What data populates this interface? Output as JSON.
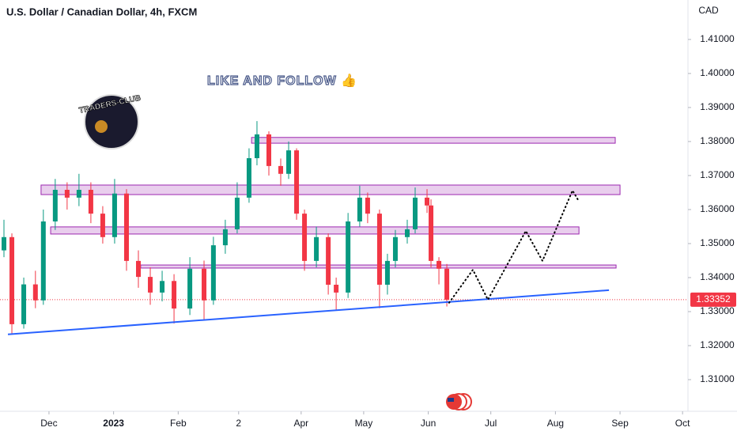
{
  "chart_data": {
    "type": "candlestick",
    "title": "U.S. Dollar / Canadian Dollar, 4h, FXCM",
    "currency": "CAD",
    "banner": "LIKE AND FOLLOW 👍",
    "logo": "TRADERS-CLUB",
    "up_color": "#089981",
    "down_color": "#f23645",
    "candles": {
      "x": [
        8.4,
        12.2,
        17.9,
        23.5,
        27.3,
        33,
        38.7,
        44.4,
        50.1,
        55.8,
        61.5,
        67.2,
        72.9,
        78.6,
        84.3,
        90,
        97.6,
        104.4,
        108.9,
        114.6,
        120.3,
        126,
        129.8,
        135.5,
        141.2,
        145,
        148.8,
        152.6,
        158.3,
        164,
        167.8,
        173.5,
        179.1,
        182.9,
        188.6,
        192.4,
        196.2,
        201.9,
        205.7,
        211.4,
        213.3,
        217.1,
        220.9
      ],
      "open": [
        1.348,
        1.3519,
        1.3263,
        1.338,
        1.3333,
        1.3565,
        1.3658,
        1.3635,
        1.3658,
        1.3588,
        1.3519,
        1.3647,
        1.3449,
        1.3402,
        1.3356,
        1.339,
        1.3309,
        1.3426,
        1.3333,
        1.3495,
        1.3542,
        1.3635,
        1.3751,
        1.3821,
        1.3728,
        1.3705,
        1.3774,
        1.3588,
        1.3449,
        1.3519,
        1.3379,
        1.3356,
        1.3565,
        1.3635,
        1.3588,
        1.3379,
        1.3449,
        1.3519,
        1.3542,
        1.3635,
        1.3612,
        1.3449,
        1.3426
      ],
      "high": [
        1.357,
        1.353,
        1.34,
        1.342,
        1.36,
        1.369,
        1.368,
        1.3705,
        1.368,
        1.361,
        1.369,
        1.366,
        1.348,
        1.343,
        1.342,
        1.341,
        1.346,
        1.345,
        1.352,
        1.357,
        1.368,
        1.378,
        1.386,
        1.383,
        1.375,
        1.38,
        1.378,
        1.36,
        1.355,
        1.353,
        1.34,
        1.359,
        1.367,
        1.365,
        1.36,
        1.347,
        1.354,
        1.357,
        1.3665,
        1.366,
        1.363,
        1.346,
        1.344
      ],
      "low": [
        1.346,
        1.3235,
        1.325,
        1.331,
        1.332,
        1.354,
        1.36,
        1.361,
        1.356,
        1.35,
        1.35,
        1.342,
        1.337,
        1.332,
        1.333,
        1.3265,
        1.329,
        1.3275,
        1.332,
        1.347,
        1.353,
        1.362,
        1.373,
        1.37,
        1.367,
        1.369,
        1.357,
        1.342,
        1.343,
        1.335,
        1.3305,
        1.334,
        1.355,
        1.356,
        1.331,
        1.335,
        1.343,
        1.35,
        1.353,
        1.359,
        1.343,
        1.338,
        1.3315
      ],
      "close": [
        1.3519,
        1.3263,
        1.338,
        1.3333,
        1.3565,
        1.3658,
        1.3635,
        1.3658,
        1.3588,
        1.3519,
        1.3647,
        1.3449,
        1.3402,
        1.3356,
        1.339,
        1.3309,
        1.3426,
        1.3333,
        1.3495,
        1.3542,
        1.3635,
        1.3751,
        1.3821,
        1.3728,
        1.3705,
        1.3774,
        1.3588,
        1.3449,
        1.3519,
        1.3379,
        1.3356,
        1.3565,
        1.3635,
        1.3588,
        1.3379,
        1.3449,
        1.3519,
        1.3542,
        1.3635,
        1.3612,
        1.3449,
        1.3426,
        1.3335
      ]
    },
    "zones": [
      {
        "x": [
          127.2,
          301.7
        ],
        "y": [
          1.3795,
          1.3812
        ]
      },
      {
        "x": [
          26.2,
          304
        ],
        "y": [
          1.3644,
          1.3672
        ]
      },
      {
        "x": [
          30.8,
          284.3
        ],
        "y": [
          1.3528,
          1.3549
        ]
      },
      {
        "x": [
          74,
          302.1
        ],
        "y": [
          1.3428,
          1.3437
        ]
      }
    ],
    "trendline": {
      "x": [
        10.3,
        298.7
      ],
      "y": [
        1.3233,
        1.3363
      ]
    },
    "projection": {
      "x": [
        222,
        233.4,
        240.6,
        258.8,
        266.8,
        281.2,
        283.9
      ],
      "y": [
        1.3326,
        1.3423,
        1.3335,
        1.3537,
        1.3449,
        1.3656,
        1.3628
      ]
    },
    "last_price": 1.33352,
    "xlim": [
      6.5,
      336.6
    ],
    "ylim": [
      1.3007,
      1.4216
    ],
    "xticks": [
      {
        "value": 30,
        "label": "Dec"
      },
      {
        "value": 61,
        "label": "2023"
      },
      {
        "value": 92,
        "label": "Feb"
      },
      {
        "value": 121,
        "label": "2"
      },
      {
        "value": 151,
        "label": "Apr"
      },
      {
        "value": 181,
        "label": "May"
      },
      {
        "value": 212,
        "label": "Jun"
      },
      {
        "value": 242,
        "label": "Jul"
      },
      {
        "value": 273,
        "label": "Aug"
      },
      {
        "value": 304,
        "label": "Sep"
      },
      {
        "value": 334,
        "label": "Oct"
      }
    ],
    "yticks": [
      {
        "value": 1.31,
        "label": "1.31000"
      },
      {
        "value": 1.32,
        "label": "1.32000"
      },
      {
        "value": 1.33,
        "label": "1.33000"
      },
      {
        "value": 1.34,
        "label": "1.34000"
      },
      {
        "value": 1.35,
        "label": "1.35000"
      },
      {
        "value": 1.36,
        "label": "1.36000"
      },
      {
        "value": 1.37,
        "label": "1.37000"
      },
      {
        "value": 1.38,
        "label": "1.38000"
      },
      {
        "value": 1.39,
        "label": "1.39000"
      },
      {
        "value": 1.4,
        "label": "1.40000"
      },
      {
        "value": 1.41,
        "label": "1.41000"
      }
    ]
  }
}
